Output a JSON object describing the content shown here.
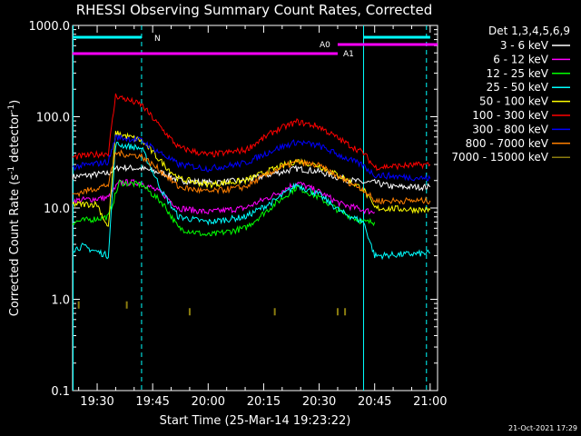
{
  "chart_data": {
    "type": "line",
    "title": "RHESSI Observing Summary Count Rates, Corrected",
    "xlabel": "Start Time (25-Mar-14 19:23:22)",
    "ylabel_main": "Corrected Count Rate (s",
    "ylabel_sup1": "-1",
    "ylabel_mid": " detector",
    "ylabel_sup2": "-1",
    "ylabel_end": ")",
    "y_scale": "log",
    "ylim": [
      0.1,
      1000
    ],
    "xlim": [
      "19:23:22",
      "21:02:00"
    ],
    "x_ticks": [
      "19:30",
      "19:45",
      "20:00",
      "20:15",
      "20:30",
      "20:45",
      "21:00"
    ],
    "y_ticks": [
      "0.1",
      "1.0",
      "10.0",
      "100.0",
      "1000.0"
    ],
    "legend_title": "Det 1,3,4,5,6,9",
    "legend_position": "right",
    "series": [
      {
        "name": "3 - 6 keV",
        "color": "#ffffff",
        "points": [
          [
            "19:23:22",
            22
          ],
          [
            "19:33",
            24
          ],
          [
            "19:36",
            28
          ],
          [
            "19:42",
            27
          ],
          [
            "19:48",
            24
          ],
          [
            "19:52",
            20
          ],
          [
            "20:00",
            19
          ],
          [
            "20:10",
            20
          ],
          [
            "20:18",
            24
          ],
          [
            "20:24",
            27
          ],
          [
            "20:30",
            25
          ],
          [
            "20:36",
            21
          ],
          [
            "20:42",
            19
          ],
          [
            "20:45",
            19
          ],
          [
            "20:50",
            17
          ],
          [
            "21:00",
            17
          ]
        ]
      },
      {
        "name": "6 - 12 keV",
        "color": "#ff00ff",
        "points": [
          [
            "19:23:22",
            12
          ],
          [
            "19:33",
            13
          ],
          [
            "19:36",
            19
          ],
          [
            "19:42",
            19
          ],
          [
            "19:48",
            14
          ],
          [
            "19:52",
            10
          ],
          [
            "20:00",
            9
          ],
          [
            "20:10",
            10
          ],
          [
            "20:18",
            14
          ],
          [
            "20:24",
            19
          ],
          [
            "20:30",
            15
          ],
          [
            "20:36",
            11
          ],
          [
            "20:42",
            9.5
          ],
          [
            "20:45",
            9
          ]
        ]
      },
      {
        "name": "12 - 25 keV",
        "color": "#00ff00",
        "points": [
          [
            "19:23:22",
            7
          ],
          [
            "19:33",
            8
          ],
          [
            "19:36",
            19
          ],
          [
            "19:42",
            18
          ],
          [
            "19:48",
            11
          ],
          [
            "19:52",
            6
          ],
          [
            "20:00",
            5
          ],
          [
            "20:10",
            6
          ],
          [
            "20:18",
            11
          ],
          [
            "20:24",
            17
          ],
          [
            "20:30",
            13
          ],
          [
            "20:36",
            9
          ],
          [
            "20:42",
            7
          ],
          [
            "20:45",
            7
          ]
        ]
      },
      {
        "name": "25 - 50 keV",
        "color": "#00ffff",
        "points": [
          [
            "19:23:22",
            3.5
          ],
          [
            "19:26",
            3.8
          ],
          [
            "19:33",
            3
          ],
          [
            "19:35",
            50
          ],
          [
            "19:42",
            45
          ],
          [
            "19:48",
            14
          ],
          [
            "19:52",
            8
          ],
          [
            "20:00",
            7
          ],
          [
            "20:10",
            8
          ],
          [
            "20:18",
            12
          ],
          [
            "20:24",
            18
          ],
          [
            "20:30",
            14
          ],
          [
            "20:36",
            9
          ],
          [
            "20:42",
            7
          ],
          [
            "20:45",
            3
          ],
          [
            "21:00",
            3.2
          ]
        ]
      },
      {
        "name": "50 - 100 keV",
        "color": "#ffff00",
        "points": [
          [
            "19:23:22",
            11
          ],
          [
            "19:30",
            11
          ],
          [
            "19:33",
            6
          ],
          [
            "19:35",
            66
          ],
          [
            "19:42",
            55
          ],
          [
            "19:48",
            30
          ],
          [
            "19:52",
            21
          ],
          [
            "20:00",
            18
          ],
          [
            "20:10",
            20
          ],
          [
            "20:18",
            27
          ],
          [
            "20:24",
            33
          ],
          [
            "20:30",
            29
          ],
          [
            "20:36",
            22
          ],
          [
            "20:42",
            16
          ],
          [
            "20:45",
            10
          ],
          [
            "21:00",
            9.5
          ]
        ]
      },
      {
        "name": "100 - 300 keV",
        "color": "#ff0000",
        "points": [
          [
            "19:23:22",
            36
          ],
          [
            "19:33",
            40
          ],
          [
            "19:35",
            170
          ],
          [
            "19:42",
            135
          ],
          [
            "19:48",
            70
          ],
          [
            "19:52",
            46
          ],
          [
            "20:00",
            38
          ],
          [
            "20:10",
            43
          ],
          [
            "20:18",
            70
          ],
          [
            "20:24",
            88
          ],
          [
            "20:30",
            78
          ],
          [
            "20:36",
            55
          ],
          [
            "20:42",
            40
          ],
          [
            "20:45",
            28
          ],
          [
            "21:00",
            30
          ]
        ]
      },
      {
        "name": "300 - 800 keV",
        "color": "#0000ff",
        "points": [
          [
            "19:23:22",
            28
          ],
          [
            "19:33",
            32
          ],
          [
            "19:35",
            60
          ],
          [
            "19:42",
            55
          ],
          [
            "19:48",
            38
          ],
          [
            "19:52",
            30
          ],
          [
            "20:00",
            27
          ],
          [
            "20:10",
            31
          ],
          [
            "20:18",
            44
          ],
          [
            "20:24",
            53
          ],
          [
            "20:30",
            48
          ],
          [
            "20:36",
            37
          ],
          [
            "20:42",
            29
          ],
          [
            "20:45",
            23
          ],
          [
            "21:00",
            21
          ]
        ]
      },
      {
        "name": "800 - 7000 keV",
        "color": "#ff7f00",
        "points": [
          [
            "19:23:22",
            14
          ],
          [
            "19:33",
            18
          ],
          [
            "19:35",
            40
          ],
          [
            "19:42",
            37
          ],
          [
            "19:48",
            24
          ],
          [
            "19:52",
            17
          ],
          [
            "20:00",
            15
          ],
          [
            "20:10",
            17
          ],
          [
            "20:18",
            26
          ],
          [
            "20:24",
            32
          ],
          [
            "20:30",
            29
          ],
          [
            "20:36",
            21
          ],
          [
            "20:42",
            16
          ],
          [
            "20:45",
            12
          ],
          [
            "21:00",
            12
          ]
        ]
      },
      {
        "name": "7000 - 15000 keV",
        "color": "#8b7d0f",
        "points": [
          [
            "19:25",
            0.95
          ],
          [
            "19:38",
            0.95
          ],
          [
            "19:55",
            0.8
          ],
          [
            "20:18",
            0.8
          ],
          [
            "20:35",
            0.8
          ],
          [
            "20:37",
            0.8
          ]
        ]
      }
    ],
    "markers": {
      "N_label": "N",
      "A0_label": "A0",
      "A1_label": "A1",
      "night_color": "#00ffff",
      "attenuator_color": "#ff00ff",
      "night_bars": [
        [
          "19:23:22",
          "19:42"
        ],
        [
          "20:42",
          "21:00"
        ]
      ],
      "night_dashed": [
        "19:42",
        "20:59"
      ],
      "night_solid": [
        "19:23:30",
        "20:42"
      ],
      "A0_bar": [
        "20:35",
        "21:02"
      ],
      "A1_bar": [
        "19:23:22",
        "20:35"
      ]
    },
    "timestamp": "21-Oct-2021 17:29"
  }
}
